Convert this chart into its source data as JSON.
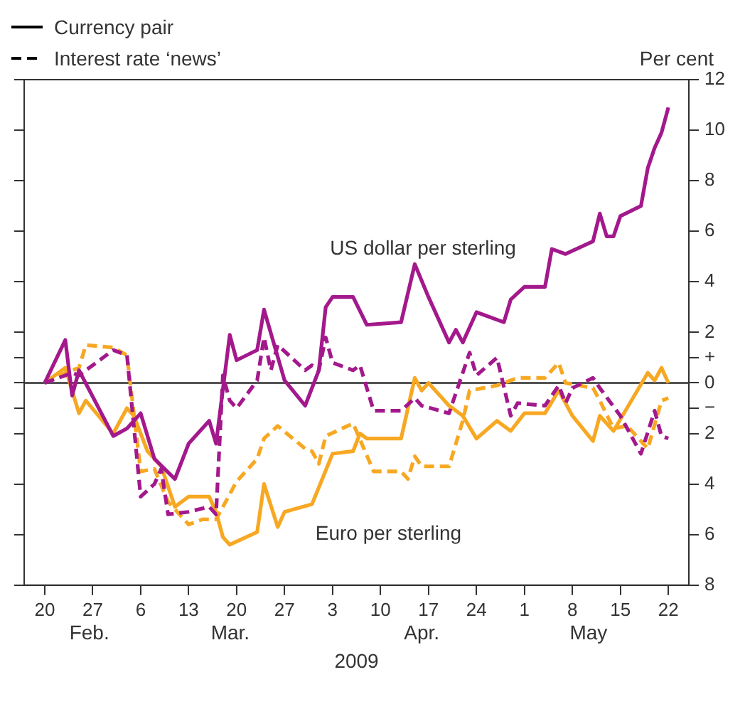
{
  "chart_data": {
    "type": "line",
    "ylabel": "Per cent",
    "xlabel": "2009",
    "annotations": [
      "US dollar per sterling",
      "Euro per sterling",
      "Feb.",
      "Mar.",
      "Apr.",
      "May"
    ],
    "series": [
      {
        "color": "#a3198c",
        "line_style": "solid",
        "x": [
          "2009-02-20",
          "2009-02-23",
          "2009-02-24",
          "2009-02-25",
          "2009-03-02",
          "2009-03-04",
          "2009-03-06",
          "2009-03-08",
          "2009-03-11",
          "2009-03-13",
          "2009-03-16",
          "2009-03-17",
          "2009-03-19",
          "2009-03-20",
          "2009-03-23",
          "2009-03-24",
          "2009-03-27",
          "2009-03-30",
          "2009-04-01",
          "2009-04-02",
          "2009-04-03",
          "2009-04-06",
          "2009-04-08",
          "2009-04-13",
          "2009-04-15",
          "2009-04-17",
          "2009-04-20",
          "2009-04-21",
          "2009-04-22",
          "2009-04-24",
          "2009-04-28",
          "2009-04-29",
          "2009-05-01",
          "2009-05-04",
          "2009-05-05",
          "2009-05-07",
          "2009-05-11",
          "2009-05-12",
          "2009-05-13",
          "2009-05-14",
          "2009-05-15",
          "2009-05-18",
          "2009-05-19",
          "2009-05-20",
          "2009-05-21",
          "2009-05-22"
        ],
        "values": [
          0,
          1.7,
          -0.5,
          0.5,
          -2.1,
          -1.8,
          -1.2,
          -3.0,
          -3.8,
          -2.4,
          -1.5,
          -2.4,
          1.9,
          0.9,
          1.3,
          2.9,
          0.1,
          -0.9,
          0.5,
          3.0,
          3.4,
          3.4,
          2.3,
          2.4,
          4.7,
          3.4,
          1.6,
          2.1,
          1.6,
          2.8,
          2.4,
          3.3,
          3.8,
          3.8,
          5.3,
          5.1,
          5.6,
          6.7,
          5.8,
          5.8,
          6.6,
          7.0,
          8.5,
          9.3,
          9.9,
          10.9
        ]
      },
      {
        "color": "#a3198c",
        "line_style": "dashed",
        "x": [
          "2009-02-20",
          "2009-02-23",
          "2009-02-24",
          "2009-02-25",
          "2009-03-02",
          "2009-03-04",
          "2009-03-06",
          "2009-03-08",
          "2009-03-09",
          "2009-03-10",
          "2009-03-13",
          "2009-03-16",
          "2009-03-17",
          "2009-03-18",
          "2009-03-19",
          "2009-03-20",
          "2009-03-23",
          "2009-03-24",
          "2009-03-25",
          "2009-03-26",
          "2009-03-30",
          "2009-03-31",
          "2009-04-01",
          "2009-04-02",
          "2009-04-03",
          "2009-04-06",
          "2009-04-07",
          "2009-04-09",
          "2009-04-13",
          "2009-04-15",
          "2009-04-16",
          "2009-04-20",
          "2009-04-23",
          "2009-04-24",
          "2009-04-27",
          "2009-04-29",
          "2009-04-30",
          "2009-05-04",
          "2009-05-06",
          "2009-05-07",
          "2009-05-08",
          "2009-05-11",
          "2009-05-12",
          "2009-05-15",
          "2009-05-18",
          "2009-05-20",
          "2009-05-21",
          "2009-05-22"
        ],
        "values": [
          0,
          0.3,
          0.4,
          0.3,
          1.3,
          1.1,
          -4.5,
          -4.0,
          -3.4,
          -5.2,
          -5.1,
          -4.9,
          -5.2,
          0.3,
          -0.7,
          -1.0,
          0.1,
          1.8,
          0.5,
          1.5,
          0.5,
          0.7,
          0.5,
          1.8,
          0.8,
          0.5,
          0.7,
          -1.1,
          -1.1,
          -0.6,
          -0.9,
          -1.2,
          1.2,
          0.3,
          1.0,
          -1.3,
          -0.8,
          -0.9,
          -0.1,
          -0.8,
          -0.2,
          0.2,
          -0.2,
          -1.3,
          -2.8,
          -1.1,
          -2.1,
          -2.2
        ]
      },
      {
        "color": "#f7a823",
        "line_style": "solid",
        "x": [
          "2009-02-20",
          "2009-02-23",
          "2009-02-25",
          "2009-02-26",
          "2009-03-02",
          "2009-03-04",
          "2009-03-05",
          "2009-03-07",
          "2009-03-09",
          "2009-03-11",
          "2009-03-13",
          "2009-03-16",
          "2009-03-17",
          "2009-03-18",
          "2009-03-19",
          "2009-03-23",
          "2009-03-24",
          "2009-03-26",
          "2009-03-27",
          "2009-03-31",
          "2009-04-03",
          "2009-04-06",
          "2009-04-07",
          "2009-04-08",
          "2009-04-13",
          "2009-04-15",
          "2009-04-16",
          "2009-04-17",
          "2009-04-20",
          "2009-04-22",
          "2009-04-24",
          "2009-04-27",
          "2009-04-29",
          "2009-05-01",
          "2009-05-04",
          "2009-05-06",
          "2009-05-08",
          "2009-05-11",
          "2009-05-12",
          "2009-05-14",
          "2009-05-19",
          "2009-05-20",
          "2009-05-21",
          "2009-05-22"
        ],
        "values": [
          0,
          0.6,
          -1.2,
          -0.7,
          -2.0,
          -1.0,
          -1.3,
          -2.7,
          -3.3,
          -4.9,
          -4.5,
          -4.5,
          -5.1,
          -6.1,
          -6.4,
          -5.9,
          -4.0,
          -5.7,
          -5.1,
          -4.8,
          -2.8,
          -2.7,
          -2.0,
          -2.2,
          -2.2,
          0.2,
          -0.3,
          0,
          -0.9,
          -1.3,
          -2.2,
          -1.5,
          -1.9,
          -1.2,
          -1.2,
          -0.3,
          -1.3,
          -2.3,
          -1.3,
          -1.9,
          0.4,
          0.1,
          0.6,
          0
        ]
      },
      {
        "color": "#f7a823",
        "line_style": "dashed",
        "x": [
          "2009-02-20",
          "2009-02-23",
          "2009-02-25",
          "2009-02-26",
          "2009-03-02",
          "2009-03-04",
          "2009-03-06",
          "2009-03-08",
          "2009-03-10",
          "2009-03-13",
          "2009-03-15",
          "2009-03-17",
          "2009-03-20",
          "2009-03-23",
          "2009-03-24",
          "2009-03-26",
          "2009-03-30",
          "2009-03-31",
          "2009-04-01",
          "2009-04-02",
          "2009-04-06",
          "2009-04-09",
          "2009-04-13",
          "2009-04-14",
          "2009-04-15",
          "2009-04-16",
          "2009-04-20",
          "2009-04-22",
          "2009-04-23",
          "2009-04-27",
          "2009-04-30",
          "2009-05-04",
          "2009-05-06",
          "2009-05-07",
          "2009-05-09",
          "2009-05-11",
          "2009-05-12",
          "2009-05-14",
          "2009-05-16",
          "2009-05-19",
          "2009-05-21",
          "2009-05-22"
        ],
        "values": [
          0,
          0.4,
          0.6,
          1.5,
          1.4,
          1.1,
          -3.5,
          -3.4,
          -4.7,
          -5.6,
          -5.4,
          -5.4,
          -3.9,
          -3.0,
          -2.2,
          -1.7,
          -2.6,
          -2.7,
          -3.2,
          -2.1,
          -1.6,
          -3.5,
          -3.5,
          -3.8,
          -2.9,
          -3.3,
          -3.3,
          -1.5,
          -0.3,
          -0.1,
          0.2,
          0.2,
          0.8,
          0,
          -0.1,
          -0.2,
          -0.7,
          -1.8,
          -1.7,
          -2.6,
          -0.7,
          -0.6
        ]
      },
      {
        "name": "Currency pair",
        "color": "#000000",
        "line_style": "solid"
      },
      {
        "name": "Interest rate ‘news’",
        "color": "#000000",
        "line_style": "dashed"
      }
    ],
    "xlim": [
      "2009-02-17",
      "2009-05-25"
    ],
    "xticks": [
      {
        "value": "2009-02-20",
        "label": "20"
      },
      {
        "value": "2009-02-27",
        "label": "27"
      },
      {
        "value": "2009-03-06",
        "label": "6"
      },
      {
        "value": "2009-03-13",
        "label": "13"
      },
      {
        "value": "2009-03-20",
        "label": "20"
      },
      {
        "value": "2009-03-27",
        "label": "27"
      },
      {
        "value": "2009-04-03",
        "label": "3"
      },
      {
        "value": "2009-04-10",
        "label": "10"
      },
      {
        "value": "2009-04-17",
        "label": "17"
      },
      {
        "value": "2009-04-24",
        "label": "24"
      },
      {
        "value": "2009-05-01",
        "label": "1"
      },
      {
        "value": "2009-05-08",
        "label": "8"
      },
      {
        "value": "2009-05-15",
        "label": "15"
      },
      {
        "value": "2009-05-22",
        "label": "22"
      }
    ],
    "ylim": [
      -8,
      12
    ],
    "yticks": [
      12,
      10,
      8,
      6,
      4,
      2,
      {
        "value": 1,
        "label": "+"
      },
      0,
      {
        "value": -1,
        "label": "−"
      },
      {
        "value": -2,
        "label": "2"
      },
      {
        "value": -4,
        "label": "4"
      },
      {
        "value": -6,
        "label": "6"
      },
      {
        "value": -8,
        "label": "8"
      }
    ],
    "ref_lines": [
      {
        "axis": "y",
        "value": 0,
        "color": "#555555"
      }
    ],
    "grid": false,
    "legend": "top left"
  }
}
